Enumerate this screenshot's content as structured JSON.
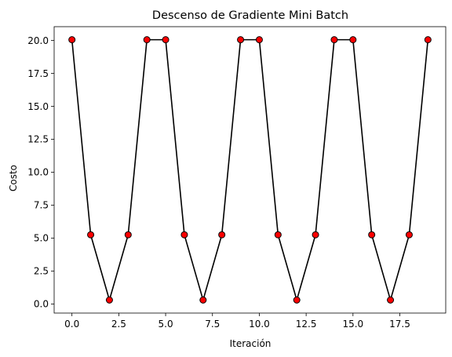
{
  "chart_data": {
    "type": "line",
    "title": "Descenso de Gradiente Mini Batch",
    "xlabel": "Iteración",
    "ylabel": "Costo",
    "x": [
      0,
      1,
      2,
      3,
      4,
      5,
      6,
      7,
      8,
      9,
      10,
      11,
      12,
      13,
      14,
      15,
      16,
      17,
      18,
      19
    ],
    "series": [
      {
        "values": [
          20.05,
          5.25,
          0.3,
          5.25,
          20.05,
          20.05,
          5.25,
          0.3,
          5.25,
          20.05,
          20.05,
          5.25,
          0.3,
          5.25,
          20.05,
          20.05,
          5.25,
          0.3,
          5.25,
          20.05
        ],
        "line_color": "#000000",
        "marker": "circle",
        "marker_face_color": "#ff0000",
        "marker_edge_color": "#000000"
      }
    ],
    "xlim": [
      -0.95,
      19.95
    ],
    "ylim": [
      -0.69,
      21.04
    ],
    "xticks": [
      0.0,
      2.5,
      5.0,
      7.5,
      10.0,
      12.5,
      15.0,
      17.5
    ],
    "xtick_labels": [
      "0.0",
      "2.5",
      "5.0",
      "7.5",
      "10.0",
      "12.5",
      "15.0",
      "17.5"
    ],
    "yticks": [
      0.0,
      2.5,
      5.0,
      7.5,
      10.0,
      12.5,
      15.0,
      17.5,
      20.0
    ],
    "ytick_labels": [
      "0.0",
      "2.5",
      "5.0",
      "7.5",
      "10.0",
      "12.5",
      "15.0",
      "17.5",
      "20.0"
    ],
    "grid": false,
    "legend": "none"
  }
}
